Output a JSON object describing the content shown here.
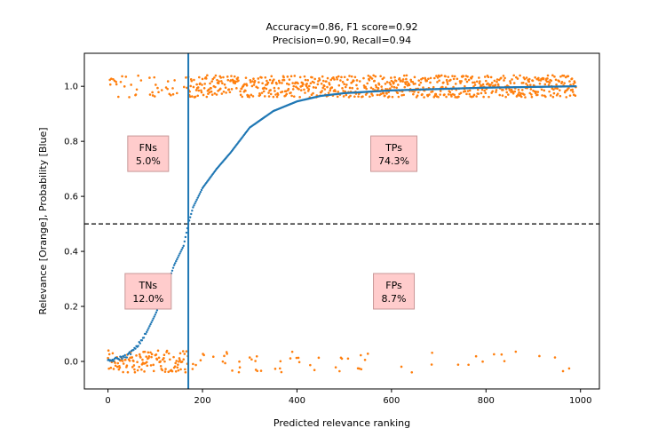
{
  "chart_data": {
    "type": "scatter",
    "title_line1": "Accuracy=0.86, F1 score=0.92",
    "title_line2": "Precision=0.90, Recall=0.94",
    "xlabel": "Predicted relevance ranking",
    "ylabel": "Relevance [Orange], Probability [Blue]",
    "xlim": [
      -50,
      1040
    ],
    "ylim": [
      -0.1,
      1.12
    ],
    "x_ticks": [
      0,
      200,
      400,
      600,
      800,
      1000
    ],
    "y_ticks": [
      0.0,
      0.2,
      0.4,
      0.6,
      0.8,
      1.0
    ],
    "x_tick_labels": [
      "0",
      "200",
      "400",
      "600",
      "800",
      "1000"
    ],
    "y_tick_labels": [
      "0.0",
      "0.2",
      "0.4",
      "0.6",
      "0.8",
      "1.0"
    ],
    "threshold_y": 0.5,
    "cutoff_x": 170,
    "grid": false,
    "colors": {
      "relevance": "#ff7f0e",
      "probability": "#1f77b4",
      "box_fill": "#ffcccc",
      "box_edge": "#c89898"
    },
    "series": [
      {
        "color": "#1f77b4",
        "curve_points": [
          [
            0,
            0.0
          ],
          [
            20,
            0.01
          ],
          [
            40,
            0.02
          ],
          [
            60,
            0.05
          ],
          [
            80,
            0.1
          ],
          [
            100,
            0.17
          ],
          [
            120,
            0.25
          ],
          [
            140,
            0.35
          ],
          [
            160,
            0.42
          ],
          [
            170,
            0.5
          ],
          [
            180,
            0.56
          ],
          [
            200,
            0.63
          ],
          [
            230,
            0.7
          ],
          [
            260,
            0.76
          ],
          [
            300,
            0.85
          ],
          [
            350,
            0.91
          ],
          [
            400,
            0.945
          ],
          [
            450,
            0.965
          ],
          [
            500,
            0.975
          ],
          [
            600,
            0.985
          ],
          [
            700,
            0.99
          ],
          [
            800,
            0.995
          ],
          [
            990,
            1.0
          ]
        ]
      },
      {
        "color": "#ff7f0e",
        "pattern": "relevance labels (0 or 1) with vertical jitter about ±0.04; dense at 1 for x ≥ 170, sparse at 0 for x ≥ 170; dense at 0 and sparse at 1 for x < 170"
      }
    ],
    "annotations": [
      {
        "name": "FNs",
        "label": "FNs",
        "value": "5.0%",
        "x": 85,
        "y": 0.755
      },
      {
        "name": "TPs",
        "label": "TPs",
        "value": "74.3%",
        "x": 605,
        "y": 0.755
      },
      {
        "name": "TNs",
        "label": "TNs",
        "value": "12.0%",
        "x": 85,
        "y": 0.255
      },
      {
        "name": "FPs",
        "label": "FPs",
        "value": "8.7%",
        "x": 605,
        "y": 0.255
      }
    ]
  }
}
